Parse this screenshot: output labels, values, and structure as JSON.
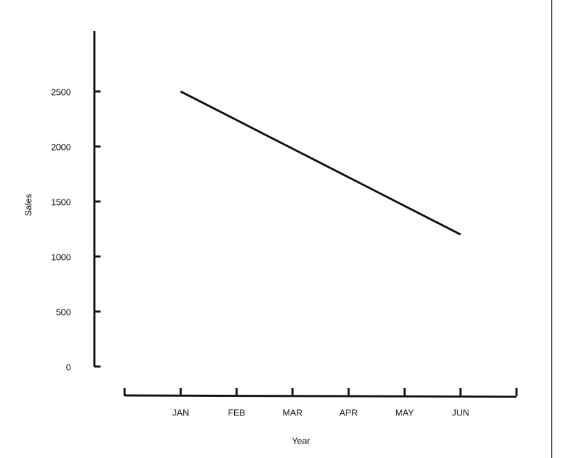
{
  "chart_data": {
    "type": "line",
    "x_label": "Year",
    "y_label": "Sales",
    "categories": [
      null,
      "JAN",
      "FEB",
      "MAR",
      "APR",
      "MAY",
      "JUN",
      null
    ],
    "values": [
      null,
      2500,
      2240,
      1980,
      1720,
      1460,
      1200,
      null
    ],
    "color": "#111111",
    "ylim": [
      0,
      3050
    ],
    "yticks": [
      0,
      500,
      1000,
      1500,
      2000,
      2500
    ],
    "grid": false
  }
}
